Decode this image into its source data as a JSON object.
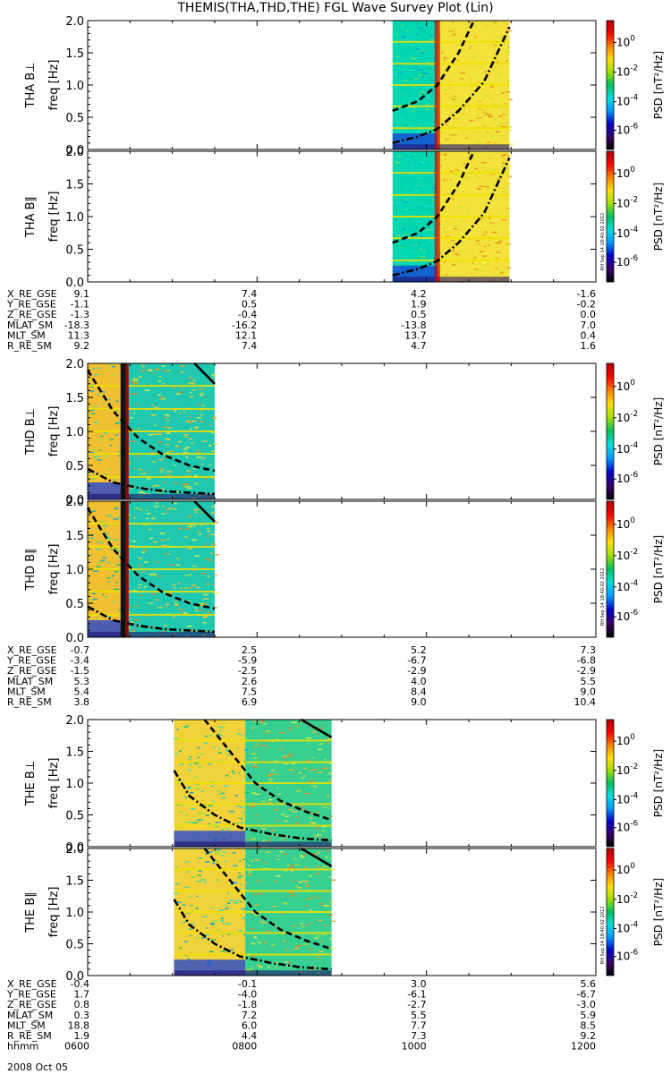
{
  "title": "THEMIS(THA,THD,THE) FGL Wave Survey Plot (Lin)",
  "date_label": "2008 Oct 05",
  "stamp": "RH Sep 14 18:40:02 2012",
  "colors": {
    "curve": "#000000",
    "orbit_black": "#111111",
    "orbit_red": "#cc0000",
    "line_harmonic": "#f0e000",
    "panel_border": "#000000"
  },
  "colorbar": {
    "label": "PSD [nT²/Hz]",
    "ticks": [
      {
        "base": "10",
        "exp": "0"
      },
      {
        "base": "10",
        "exp": "-2"
      },
      {
        "base": "10",
        "exp": "-4"
      },
      {
        "base": "10",
        "exp": "-6"
      }
    ],
    "stops": [
      "#000000",
      "#3a0066",
      "#0000c8",
      "#0099ff",
      "#00dddd",
      "#00c060",
      "#a0e000",
      "#ffe000",
      "#ff8000",
      "#ff0000",
      "#b00000"
    ]
  },
  "chart_data": [
    {
      "type": "heatmap",
      "probe": "THA",
      "panels": [
        {
          "ylabel_main": "THA B⊥",
          "ylabel_sub": "freq [Hz]"
        },
        {
          "ylabel_main": "THA B∥",
          "ylabel_sub": "freq [Hz]"
        }
      ],
      "ylim": [
        0,
        2
      ],
      "yticks": [
        "0.0",
        "0.5",
        "1.0",
        "1.5",
        "2.0"
      ],
      "data_interval": [
        0.6,
        0.83
      ],
      "boundary": 0.688,
      "orbit_line": {
        "x": 0.688,
        "color": "red"
      },
      "left_base_color": "#00d6b0",
      "right_base_color": "#f2e23a",
      "curves": [
        {
          "style": "dash",
          "points": [
            [
              0.6,
              0.6
            ],
            [
              0.65,
              0.75
            ],
            [
              0.688,
              1.0
            ],
            [
              0.73,
              1.5
            ],
            [
              0.76,
              2.0
            ]
          ]
        },
        {
          "style": "dashdot",
          "points": [
            [
              0.6,
              0.1
            ],
            [
              0.65,
              0.2
            ],
            [
              0.688,
              0.32
            ],
            [
              0.73,
              0.6
            ],
            [
              0.78,
              1.05
            ],
            [
              0.83,
              1.9
            ]
          ]
        }
      ],
      "ephemeris_rows": [
        {
          "label": "X_RE_GSE",
          "values": [
            "9.1",
            "7.4",
            "4.2",
            "-1.6"
          ]
        },
        {
          "label": "Y_RE_GSE",
          "values": [
            "-1.1",
            "0.5",
            "1.9",
            "-0.2"
          ]
        },
        {
          "label": "Z_RE_GSE",
          "values": [
            "-1.3",
            "-0.4",
            "0.5",
            "0.0"
          ]
        },
        {
          "label": "MLAT_SM",
          "values": [
            "-18.3",
            "-16.2",
            "-13.8",
            "7.0"
          ]
        },
        {
          "label": "MLT_SM",
          "values": [
            "11.3",
            "12.1",
            "13.7",
            "0.4"
          ]
        },
        {
          "label": "R_RE_SM",
          "values": [
            "9.2",
            "7.4",
            "4.7",
            "1.6"
          ]
        }
      ]
    },
    {
      "type": "heatmap",
      "probe": "THD",
      "panels": [
        {
          "ylabel_main": "THD B⊥",
          "ylabel_sub": "freq [Hz]"
        },
        {
          "ylabel_main": "THD B∥",
          "ylabel_sub": "freq [Hz]"
        }
      ],
      "ylim": [
        0,
        2
      ],
      "yticks": [
        "0.0",
        "0.5",
        "1.0",
        "1.5",
        "2.0"
      ],
      "data_interval": [
        0.0,
        0.25
      ],
      "boundary": 0.07,
      "orbit_line": {
        "x": 0.07,
        "color": "black"
      },
      "left_base_color": "#f0c030",
      "right_base_color": "#20c8b0",
      "curves": [
        {
          "style": "solid",
          "points": [
            [
              0.21,
              2.0
            ],
            [
              0.25,
              1.7
            ]
          ]
        },
        {
          "style": "dash",
          "points": [
            [
              0.0,
              1.9
            ],
            [
              0.05,
              1.3
            ],
            [
              0.1,
              0.9
            ],
            [
              0.15,
              0.65
            ],
            [
              0.2,
              0.5
            ],
            [
              0.25,
              0.42
            ]
          ]
        },
        {
          "style": "dashdot",
          "points": [
            [
              0.0,
              0.45
            ],
            [
              0.05,
              0.25
            ],
            [
              0.1,
              0.17
            ],
            [
              0.15,
              0.12
            ],
            [
              0.2,
              0.1
            ],
            [
              0.25,
              0.08
            ]
          ]
        }
      ],
      "ephemeris_rows": [
        {
          "label": "X_RE_GSE",
          "values": [
            "-0.7",
            "2.5",
            "5.2",
            "7.3"
          ]
        },
        {
          "label": "Y_RE_GSE",
          "values": [
            "-3.4",
            "-5.9",
            "-6.7",
            "-6.8"
          ]
        },
        {
          "label": "Z_RE_GSE",
          "values": [
            "-1.5",
            "-2.5",
            "-2.9",
            "-2.9"
          ]
        },
        {
          "label": "MLAT_SM",
          "values": [
            "5.3",
            "2.6",
            "4.0",
            "5.5"
          ]
        },
        {
          "label": "MLT_SM",
          "values": [
            "5.4",
            "7.5",
            "8.4",
            "9.0"
          ]
        },
        {
          "label": "R_RE_SM",
          "values": [
            "3.8",
            "6.9",
            "9.0",
            "10.4"
          ]
        }
      ]
    },
    {
      "type": "heatmap",
      "probe": "THE",
      "panels": [
        {
          "ylabel_main": "THE B⊥",
          "ylabel_sub": "freq [Hz]"
        },
        {
          "ylabel_main": "THE B∥",
          "ylabel_sub": "freq [Hz]"
        }
      ],
      "ylim": [
        0,
        2
      ],
      "yticks": [
        "0.0",
        "0.5",
        "1.0",
        "1.5",
        "2.0"
      ],
      "data_interval": [
        0.17,
        0.48
      ],
      "boundary": 0.31,
      "orbit_line": null,
      "left_base_color": "#f2d23a",
      "right_base_color": "#38d090",
      "curves": [
        {
          "style": "solid",
          "points": [
            [
              0.42,
              2.0
            ],
            [
              0.48,
              1.72
            ]
          ]
        },
        {
          "style": "dash",
          "points": [
            [
              0.23,
              2.0
            ],
            [
              0.28,
              1.5
            ],
            [
              0.33,
              1.0
            ],
            [
              0.38,
              0.72
            ],
            [
              0.43,
              0.55
            ],
            [
              0.48,
              0.42
            ]
          ]
        },
        {
          "style": "dashdot",
          "points": [
            [
              0.17,
              1.2
            ],
            [
              0.2,
              0.8
            ],
            [
              0.25,
              0.5
            ],
            [
              0.3,
              0.3
            ],
            [
              0.36,
              0.2
            ],
            [
              0.42,
              0.13
            ],
            [
              0.48,
              0.1
            ]
          ]
        }
      ],
      "ephemeris_rows": [
        {
          "label": "X_RE_GSE",
          "values": [
            "-0.4",
            "-0.1",
            "3.0",
            "5.6"
          ]
        },
        {
          "label": "Y_RE_GSE",
          "values": [
            "1.7",
            "-4.0",
            "-6.1",
            "-6.7"
          ]
        },
        {
          "label": "Z_RE_GSE",
          "values": [
            "0.8",
            "-1.8",
            "-2.7",
            "-3.0"
          ]
        },
        {
          "label": "MLAT_SM",
          "values": [
            "0.3",
            "7.2",
            "5.5",
            "5.9"
          ]
        },
        {
          "label": "MLT_SM",
          "values": [
            "18.8",
            "6.0",
            "7.7",
            "8.5"
          ]
        },
        {
          "label": "R_RE_SM",
          "values": [
            "1.9",
            "4.4",
            "7.3",
            "9.2"
          ]
        },
        {
          "label": "hhmm",
          "values": [
            "0600",
            "0800",
            "1000",
            "1200"
          ]
        }
      ]
    }
  ]
}
